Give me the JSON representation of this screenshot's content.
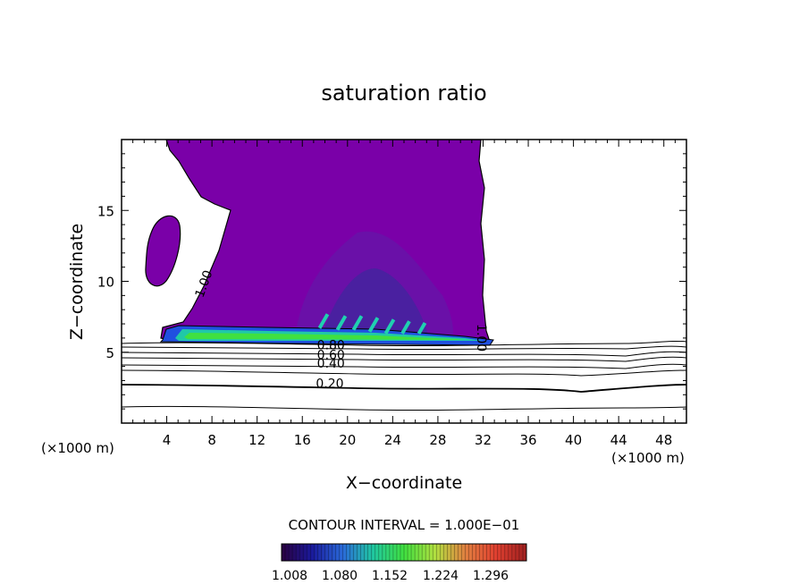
{
  "chart_data": {
    "type": "heatmap",
    "title": "saturation ratio",
    "xlabel": "X−coordinate",
    "ylabel": "Z−coordinate",
    "x_unit_left": "(×1000 m)",
    "x_unit_right": "(×1000 m)",
    "xlim": [
      0,
      50
    ],
    "ylim": [
      0,
      20
    ],
    "xticks": [
      4,
      8,
      12,
      16,
      20,
      24,
      28,
      32,
      36,
      40,
      44,
      48
    ],
    "yticks": [
      5,
      10,
      15
    ],
    "contour_interval_text": "CONTOUR INTERVAL = 1.000E−01",
    "colorbar": {
      "labels": [
        "1.008",
        "1.080",
        "1.152",
        "1.224",
        "1.296"
      ],
      "colors": [
        "#2a0040",
        "#1a1a9c",
        "#2a6ad8",
        "#20c8a0",
        "#40e040",
        "#b0e040",
        "#e08040",
        "#e04030",
        "#a02020"
      ]
    },
    "contour_labels": [
      {
        "text": "1.00",
        "x": 7.2,
        "z": 8.8,
        "rotate": -70
      },
      {
        "text": "1.00",
        "x": 31.5,
        "z": 7.0,
        "rotate": 90
      },
      {
        "text": "0.80",
        "x": 17.3,
        "z": 5.2
      },
      {
        "text": "0.60",
        "x": 17.3,
        "z": 4.5
      },
      {
        "text": "0.40",
        "x": 17.3,
        "z": 3.9
      },
      {
        "text": "0.20",
        "x": 17.2,
        "z": 2.5
      }
    ],
    "grid": false
  }
}
